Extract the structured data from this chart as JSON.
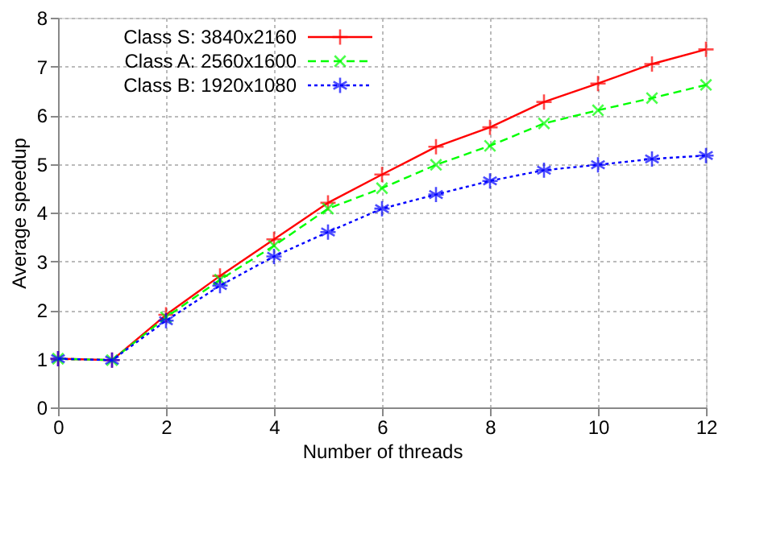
{
  "chart_data": {
    "type": "line",
    "xlabel": "Number of threads",
    "ylabel": "Average speedup",
    "x": [
      0,
      1,
      2,
      3,
      4,
      5,
      6,
      7,
      8,
      9,
      10,
      11,
      12
    ],
    "series": [
      {
        "name": "Class S: 3840x2160",
        "color": "#ff0000",
        "marker": "cross",
        "line_style": "solid",
        "values": [
          1,
          0.97,
          1.9,
          2.7,
          3.45,
          4.2,
          4.78,
          5.35,
          5.75,
          6.27,
          6.65,
          7.05,
          7.35
        ]
      },
      {
        "name": "Class A: 2560x1600",
        "color": "#00ff00",
        "marker": "cross",
        "line_style": "dashed",
        "values": [
          1,
          0.97,
          1.85,
          2.62,
          3.32,
          4.08,
          4.5,
          4.98,
          5.37,
          5.83,
          6.1,
          6.35,
          6.62
        ]
      },
      {
        "name": "Class B: 1920x1080",
        "color": "#0000ff",
        "marker": "cross",
        "line_style": "dotted",
        "values": [
          1,
          0.97,
          1.78,
          2.5,
          3.1,
          3.6,
          4.08,
          4.37,
          4.65,
          4.87,
          4.98,
          5.1,
          5.17
        ]
      }
    ],
    "xlim": [
      0,
      12
    ],
    "xticks": [
      0,
      2,
      4,
      6,
      8,
      10,
      12
    ],
    "ylim": [
      0,
      8
    ],
    "yticks": [
      0,
      1,
      2,
      3,
      4,
      5,
      6,
      7,
      8
    ],
    "grid": true,
    "legend": "top left"
  }
}
